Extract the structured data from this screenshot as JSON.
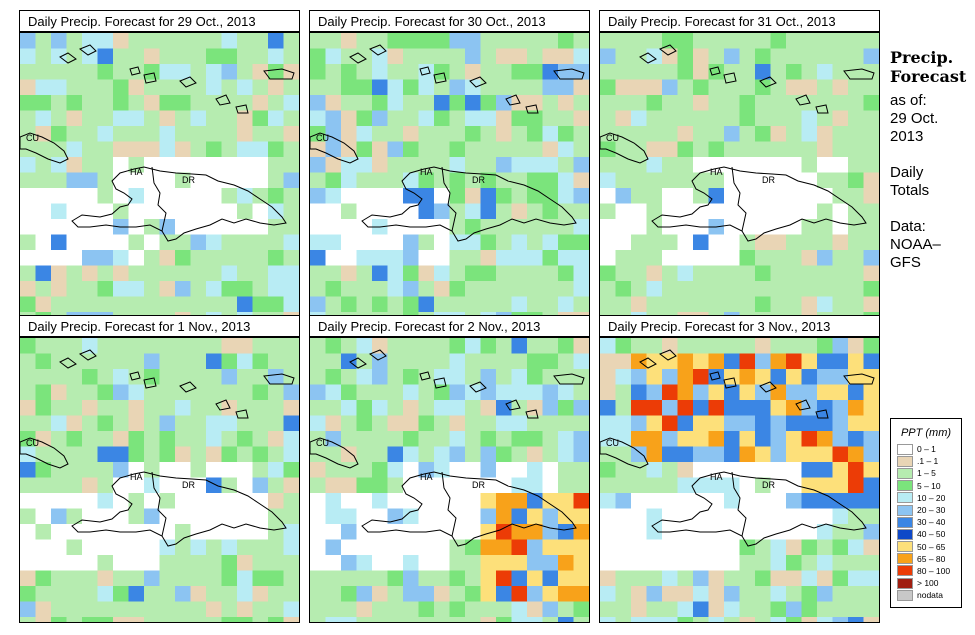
{
  "sidebar": {
    "title1": "Precip.",
    "title2": "Forecast",
    "asof": "as of:",
    "date1": "29 Oct.",
    "date2": "2013",
    "totals1": "Daily",
    "totals2": "Totals",
    "data1": "Data:",
    "data2": "NOAA–",
    "data3": "GFS"
  },
  "legend": {
    "title": "PPT (mm)",
    "classes": [
      {
        "label": "0 – 1",
        "color": "#ffffff"
      },
      {
        "label": ".1 – 1",
        "color": "#e9d5b5"
      },
      {
        "label": "1 – 5",
        "color": "#b6ecb0"
      },
      {
        "label": "5 – 10",
        "color": "#7be47c"
      },
      {
        "label": "10 – 20",
        "color": "#b8ecf4"
      },
      {
        "label": "20 – 30",
        "color": "#8cc4f2"
      },
      {
        "label": "30 – 40",
        "color": "#3b86e4"
      },
      {
        "label": "40 – 50",
        "color": "#0e48c8"
      },
      {
        "label": "50 – 65",
        "color": "#fde07a"
      },
      {
        "label": "65 – 80",
        "color": "#f8a21a"
      },
      {
        "label": "80 – 100",
        "color": "#ec3c06"
      },
      {
        "label": "> 100",
        "color": "#a01e10"
      },
      {
        "label": "nodata",
        "color": "#c8c8c8"
      }
    ]
  },
  "map_labels": {
    "cuba": "CU",
    "haiti": "HA",
    "dr": "DR"
  },
  "panels": [
    {
      "title": "Daily Precip. Forecast for  29 Oct., 2013",
      "intensity": 0.8,
      "hot": null
    },
    {
      "title": "Daily Precip. Forecast for  30 Oct., 2013",
      "intensity": 1.0,
      "hot": null
    },
    {
      "title": "Daily Precip. Forecast for  31 Oct., 2013",
      "intensity": 0.4,
      "hot": null
    },
    {
      "title": "Daily Precip. Forecast for  1 Nov., 2013",
      "intensity": 0.5,
      "hot": null
    },
    {
      "title": "Daily Precip. Forecast for  2 Nov., 2013",
      "intensity": 1.0,
      "hot": "southeast"
    },
    {
      "title": "Daily Precip. Forecast for  3 Nov., 2013",
      "intensity": 1.0,
      "hot": "north"
    }
  ]
}
